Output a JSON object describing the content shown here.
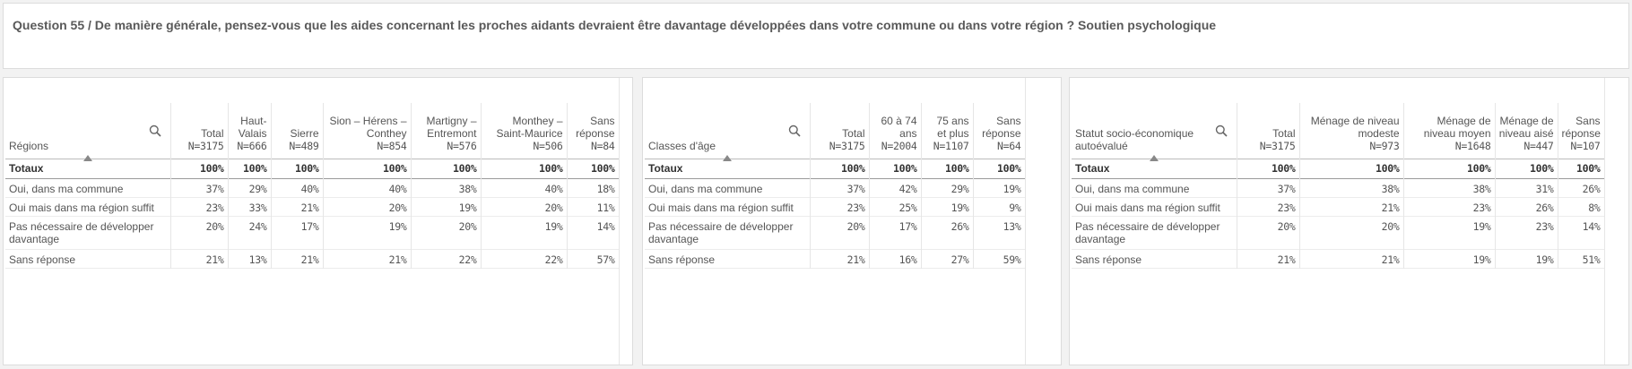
{
  "title": "Question 55 / De manière générale, pensez-vous que les aides concernant les proches aidants devraient être davantage développées dans votre commune ou dans votre région ? Soutien psychologique",
  "panels": [
    {
      "dimension": "Régions",
      "columns": [
        {
          "label": "Total",
          "n": "N=3175"
        },
        {
          "label": "Haut-Valais",
          "n": "N=666"
        },
        {
          "label": "Sierre",
          "n": "N=489"
        },
        {
          "label": "Sion – Hérens – Conthey",
          "n": "N=854"
        },
        {
          "label": "Martigny – Entremont",
          "n": "N=576"
        },
        {
          "label": "Monthey – Saint-Maurice",
          "n": "N=506"
        },
        {
          "label": "Sans réponse",
          "n": "N=84"
        }
      ],
      "totals_label": "Totaux",
      "totals": [
        "100%",
        "100%",
        "100%",
        "100%",
        "100%",
        "100%",
        "100%"
      ],
      "rows": [
        {
          "label": "Oui, dans ma commune",
          "values": [
            "37%",
            "29%",
            "40%",
            "40%",
            "38%",
            "40%",
            "18%"
          ]
        },
        {
          "label": "Oui mais dans ma région suffit",
          "values": [
            "23%",
            "33%",
            "21%",
            "20%",
            "19%",
            "20%",
            "11%"
          ]
        },
        {
          "label": "Pas nécessaire de développer davantage",
          "values": [
            "20%",
            "24%",
            "17%",
            "19%",
            "20%",
            "19%",
            "14%"
          ]
        },
        {
          "label": "Sans réponse",
          "values": [
            "21%",
            "13%",
            "21%",
            "21%",
            "22%",
            "22%",
            "57%"
          ]
        }
      ]
    },
    {
      "dimension": "Classes d'âge",
      "columns": [
        {
          "label": "Total",
          "n": "N=3175"
        },
        {
          "label": "60 à 74 ans",
          "n": "N=2004"
        },
        {
          "label": "75 ans et plus",
          "n": "N=1107"
        },
        {
          "label": "Sans réponse",
          "n": "N=64"
        }
      ],
      "totals_label": "Totaux",
      "totals": [
        "100%",
        "100%",
        "100%",
        "100%"
      ],
      "rows": [
        {
          "label": "Oui, dans ma commune",
          "values": [
            "37%",
            "42%",
            "29%",
            "19%"
          ]
        },
        {
          "label": "Oui mais dans ma région suffit",
          "values": [
            "23%",
            "25%",
            "19%",
            "9%"
          ]
        },
        {
          "label": "Pas nécessaire de développer davantage",
          "values": [
            "20%",
            "17%",
            "26%",
            "13%"
          ]
        },
        {
          "label": "Sans réponse",
          "values": [
            "21%",
            "16%",
            "27%",
            "59%"
          ]
        }
      ]
    },
    {
      "dimension": "Statut socio-économique autoévalué",
      "columns": [
        {
          "label": "Total",
          "n": "N=3175"
        },
        {
          "label": "Ménage de niveau modeste",
          "n": "N=973"
        },
        {
          "label": "Ménage de niveau moyen",
          "n": "N=1648"
        },
        {
          "label": "Ménage de niveau aisé",
          "n": "N=447"
        },
        {
          "label": "Sans réponse",
          "n": "N=107"
        }
      ],
      "totals_label": "Totaux",
      "totals": [
        "100%",
        "100%",
        "100%",
        "100%",
        "100%"
      ],
      "rows": [
        {
          "label": "Oui, dans ma commune",
          "values": [
            "37%",
            "38%",
            "38%",
            "31%",
            "26%"
          ]
        },
        {
          "label": "Oui mais dans ma région suffit",
          "values": [
            "23%",
            "21%",
            "23%",
            "26%",
            "8%"
          ]
        },
        {
          "label": "Pas nécessaire de développer davantage",
          "values": [
            "20%",
            "20%",
            "19%",
            "23%",
            "14%"
          ]
        },
        {
          "label": "Sans réponse",
          "values": [
            "21%",
            "21%",
            "19%",
            "19%",
            "51%"
          ]
        }
      ]
    }
  ]
}
